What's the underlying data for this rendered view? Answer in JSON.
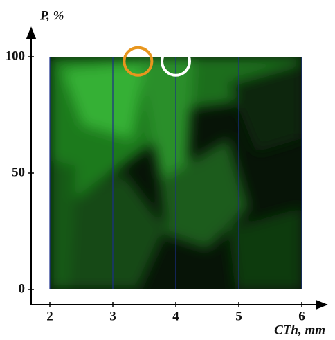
{
  "chart_data": {
    "type": "scatter",
    "x_label": "CTh, mm",
    "y_label": "P, %",
    "xlim": [
      2,
      6
    ],
    "ylim": [
      0,
      100
    ],
    "xticks": [
      2,
      3,
      4,
      5,
      6
    ],
    "yticks": [
      0,
      50,
      100
    ],
    "grid": true,
    "grid_color": "#1c2f8c",
    "series": [
      {
        "color": "#e8961e",
        "x": [
          3.4
        ],
        "values": [
          98
        ]
      },
      {
        "color": "#ffffff",
        "x": [
          4
        ],
        "values": [
          98
        ]
      }
    ]
  }
}
